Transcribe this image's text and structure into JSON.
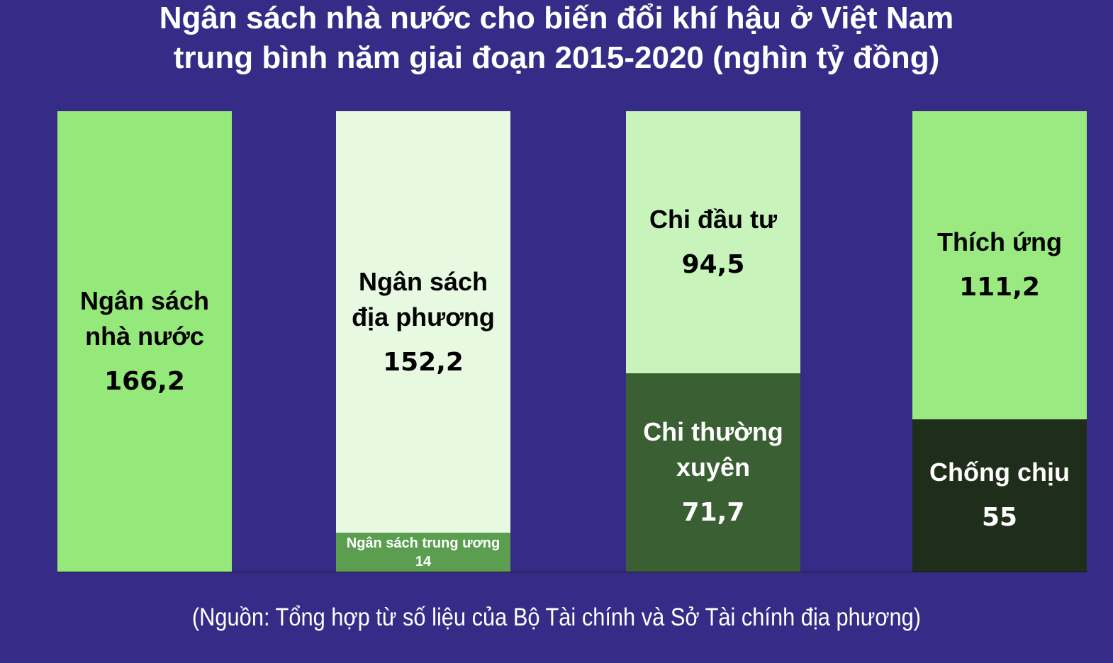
{
  "chart_data": {
    "type": "bar",
    "title": "Ngân sách nhà nước cho biến đổi khí hậu ở Việt Nam trung bình năm giai đoạn 2015-2020 (nghìn tỷ đồng)",
    "title_lines": [
      "Ngân sách nhà nước cho biến đổi khí hậu ở Việt Nam",
      "trung bình năm giai đoạn 2015-2020 (nghìn tỷ đồng)"
    ],
    "source": "(Nguồn: Tổng hợp từ số liệu của Bộ Tài chính và Sở Tài chính địa phương)",
    "stacked": true,
    "bars": [
      {
        "segments": [
          {
            "label_lines": [
              "Ngân sách",
              "nhà nước"
            ],
            "value": 166.2,
            "value_label": "166,2",
            "color": "#95e87a",
            "text_color": "#000000"
          }
        ]
      },
      {
        "segments": [
          {
            "label_lines": [
              "Ngân sách trung ương"
            ],
            "value": 14,
            "value_label": "14",
            "color": "#5c9e4f",
            "text_color": "#ffffff"
          },
          {
            "label_lines": [
              "Ngân sách",
              "địa phương"
            ],
            "value": 152.2,
            "value_label": "152,2",
            "color": "#e8f9e2",
            "text_color": "#000000"
          }
        ]
      },
      {
        "segments": [
          {
            "label_lines": [
              "Chi thường",
              "xuyên"
            ],
            "value": 71.7,
            "value_label": "71,7",
            "color": "#3a5f33",
            "text_color": "#ffffff"
          },
          {
            "label_lines": [
              "Chi đầu tư"
            ],
            "value": 94.5,
            "value_label": "94,5",
            "color": "#c8f4bb",
            "text_color": "#000000"
          }
        ]
      },
      {
        "segments": [
          {
            "label_lines": [
              "Chống chịu"
            ],
            "value": 55,
            "value_label": "55",
            "color": "#1f2e1b",
            "text_color": "#ffffff"
          },
          {
            "label_lines": [
              "Thích ứng"
            ],
            "value": 111.2,
            "value_label": "111,2",
            "color": "#9aea81",
            "text_color": "#000000"
          }
        ]
      }
    ],
    "ylim": [
      0,
      166.2
    ],
    "grid": false,
    "legend": "none"
  },
  "colors": {
    "background": "#372b88",
    "title": "#ffffff",
    "source": "#ffffff"
  }
}
